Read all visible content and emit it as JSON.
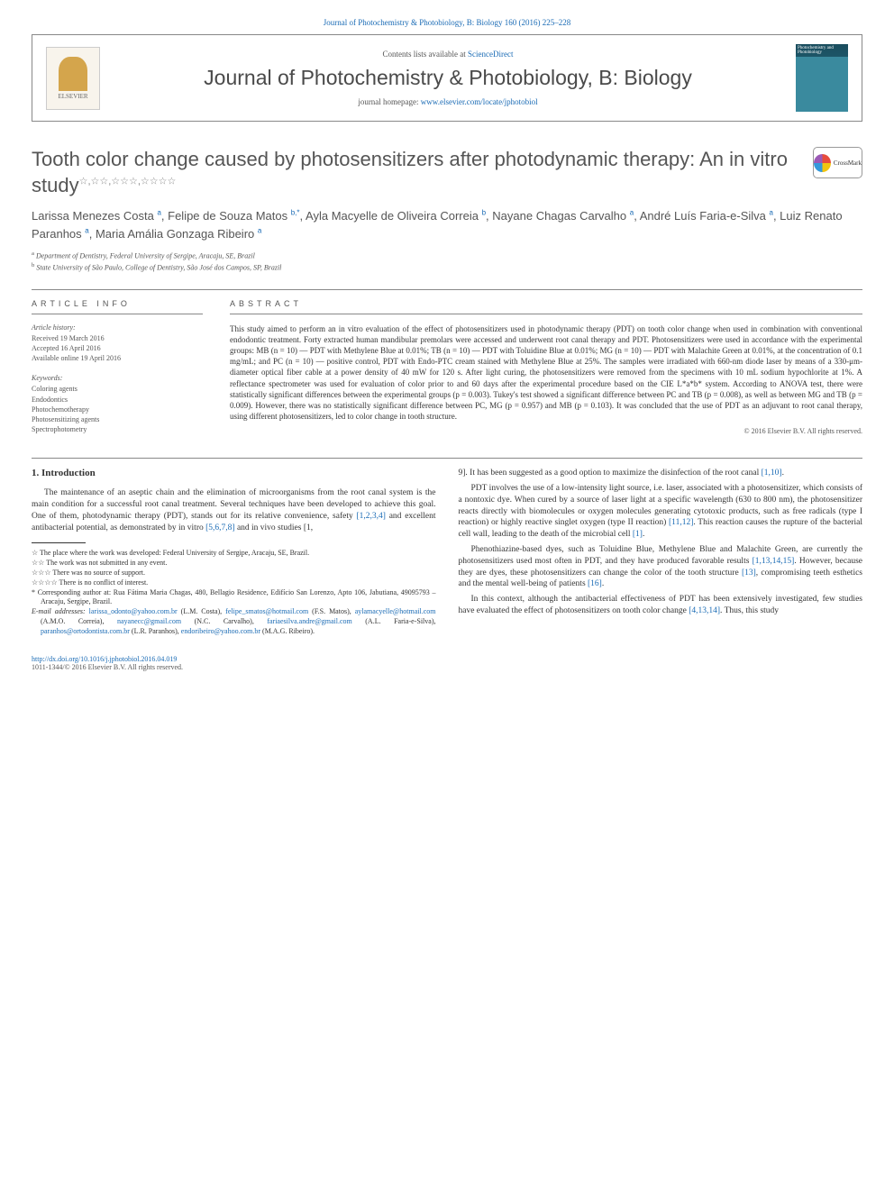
{
  "colors": {
    "link": "#1a6bb5",
    "text": "#333333",
    "meta_text": "#555555",
    "border": "#888888",
    "bg": "#ffffff"
  },
  "top_citation": "Journal of Photochemistry & Photobiology, B: Biology 160 (2016) 225–228",
  "header": {
    "contents_prefix": "Contents lists available at ",
    "contents_link": "ScienceDirect",
    "journal_title": "Journal of Photochemistry & Photobiology, B: Biology",
    "homepage_prefix": "journal homepage: ",
    "homepage_link": "www.elsevier.com/locate/jphotobiol",
    "publisher_logo": "ELSEVIER"
  },
  "article": {
    "title": "Tooth color change caused by photosensitizers after photodynamic therapy: An in vitro study",
    "title_stars": "☆,☆☆,☆☆☆,☆☆☆☆",
    "crossmark_label": "CrossMark",
    "authors_html": "Larissa Menezes Costa <sup>a</sup>, Felipe de Souza Matos <sup>b,*</sup>, Ayla Macyelle de Oliveira Correia <sup>b</sup>, Nayane Chagas Carvalho <sup>a</sup>, André Luís Faria-e-Silva <sup>a</sup>, Luiz Renato Paranhos <sup>a</sup>, Maria Amália Gonzaga Ribeiro <sup>a</sup>",
    "affiliations": [
      {
        "sup": "a",
        "text": "Department of Dentistry, Federal University of Sergipe, Aracaju, SE, Brazil"
      },
      {
        "sup": "b",
        "text": "State University of São Paulo, College of Dentistry, São José dos Campos, SP, Brazil"
      }
    ]
  },
  "article_info": {
    "label": "ARTICLE INFO",
    "history_label": "Article history:",
    "received": "Received 19 March 2016",
    "accepted": "Accepted 16 April 2016",
    "online": "Available online 19 April 2016",
    "keywords_label": "Keywords:",
    "keywords": [
      "Coloring agents",
      "Endodontics",
      "Photochemotherapy",
      "Photosensitizing agents",
      "Spectrophotometry"
    ]
  },
  "abstract": {
    "label": "ABSTRACT",
    "text": "This study aimed to perform an in vitro evaluation of the effect of photosensitizers used in photodynamic therapy (PDT) on tooth color change when used in combination with conventional endodontic treatment. Forty extracted human mandibular premolars were accessed and underwent root canal therapy and PDT. Photosensitizers were used in accordance with the experimental groups: MB (n = 10) — PDT with Methylene Blue at 0.01%; TB (n = 10) — PDT with Toluidine Blue at 0.01%; MG (n = 10) — PDT with Malachite Green at 0.01%, at the concentration of 0.1 mg/mL; and PC (n = 10) — positive control, PDT with Endo-PTC cream stained with Methylene Blue at 25%. The samples were irradiated with 660-nm diode laser by means of a 330-μm-diameter optical fiber cable at a power density of 40 mW for 120 s. After light curing, the photosensitizers were removed from the specimens with 10 mL sodium hypochlorite at 1%. A reflectance spectrometer was used for evaluation of color prior to and 60 days after the experimental procedure based on the CIE L*a*b* system. According to ANOVA test, there were statistically significant differences between the experimental groups (p = 0.003). Tukey's test showed a significant difference between PC and TB (p = 0.008), as well as between MG and TB (p = 0.009). However, there was no statistically significant difference between PC, MG (p = 0.957) and MB (p = 0.103). It was concluded that the use of PDT as an adjuvant to root canal therapy, using different photosensitizers, led to color change in tooth structure.",
    "copyright": "© 2016 Elsevier B.V. All rights reserved."
  },
  "body": {
    "section_heading": "1. Introduction",
    "col1_p1": "The maintenance of an aseptic chain and the elimination of microorganisms from the root canal system is the main condition for a successful root canal treatment. Several techniques have been developed to achieve this goal. One of them, photodynamic therapy (PDT), stands out for its relative convenience, safety [1,2,3,4] and excellent antibacterial potential, as demonstrated by in vitro [5,6,7,8] and in vivo studies [1,",
    "col2_p1": "9]. It has been suggested as a good option to maximize the disinfection of the root canal [1,10].",
    "col2_p2": "PDT involves the use of a low-intensity light source, i.e. laser, associated with a photosensitizer, which consists of a nontoxic dye. When cured by a source of laser light at a specific wavelength (630 to 800 nm), the photosensitizer reacts directly with biomolecules or oxygen molecules generating cytotoxic products, such as free radicals (type I reaction) or highly reactive singlet oxygen (type II reaction) [11,12]. This reaction causes the rupture of the bacterial cell wall, leading to the death of the microbial cell [1].",
    "col2_p3": "Phenothiazine-based dyes, such as Toluidine Blue, Methylene Blue and Malachite Green, are currently the photosensitizers used most often in PDT, and they have produced favorable results [1,13,14,15]. However, because they are dyes, these photosensitizers can change the color of the tooth structure [13], compromising teeth esthetics and the mental well-being of patients [16].",
    "col2_p4": "In this context, although the antibacterial effectiveness of PDT has been extensively investigated, few studies have evaluated the effect of photosensitizers on tooth color change [4,13,14]. Thus, this study"
  },
  "footnotes": {
    "n1": "☆ The place where the work was developed: Federal University of Sergipe, Aracaju, SE, Brazil.",
    "n2": "☆☆ The work was not submitted in any event.",
    "n3": "☆☆☆ There was no source of support.",
    "n4": "☆☆☆☆ There is no conflict of interest.",
    "corr": "* Corresponding author at: Rua Fátima Maria Chagas, 480, Bellagio Residence, Edifício San Lorenzo, Apto 106, Jabutiana, 49095793 – Aracaju, Sergipe, Brazil.",
    "emails_label": "E-mail addresses: ",
    "emails": "larissa_odonto@yahoo.com.br (L.M. Costa), felipe_smatos@hotmail.com (F.S. Matos), aylamacyelle@hotmail.com (A.M.O. Correia), nayanecc@gmail.com (N.C. Carvalho), fariaesilva.andre@gmail.com (A.L. Faria-e-Silva), paranhos@ortodontista.com.br (L.R. Paranhos), endoribeiro@yahoo.com.br (M.A.G. Ribeiro)."
  },
  "footer": {
    "doi": "http://dx.doi.org/10.1016/j.jphotobiol.2016.04.019",
    "issn_copyright": "1011-1344/© 2016 Elsevier B.V. All rights reserved."
  }
}
